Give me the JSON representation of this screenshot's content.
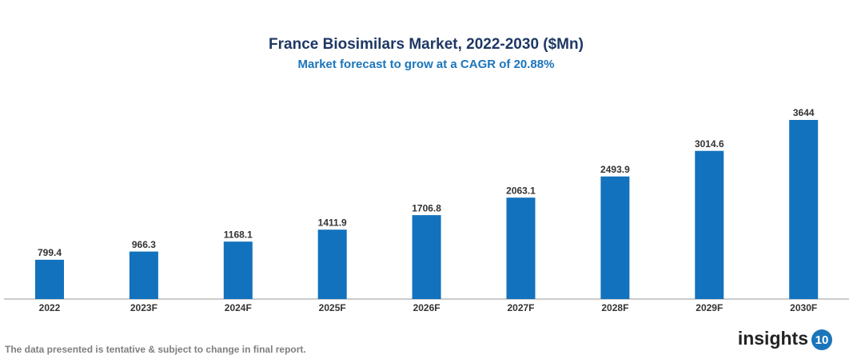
{
  "chart_data": {
    "type": "bar",
    "title": "France Biosimilars Market, 2022-2030 ($Mn)",
    "subtitle": "Market forecast to grow at a CAGR of 20.88%",
    "categories": [
      "2022",
      "2023F",
      "2024F",
      "2025F",
      "2026F",
      "2027F",
      "2028F",
      "2029F",
      "2030F"
    ],
    "values": [
      799.4,
      966.3,
      1168.1,
      1411.9,
      1706.8,
      2063.1,
      2493.9,
      3014.6,
      3644
    ],
    "color": "#1272bd"
  },
  "footer": {
    "note": "The data presented is tentative & subject to change in final report.",
    "logo_text": "insights",
    "logo_number": "10"
  }
}
